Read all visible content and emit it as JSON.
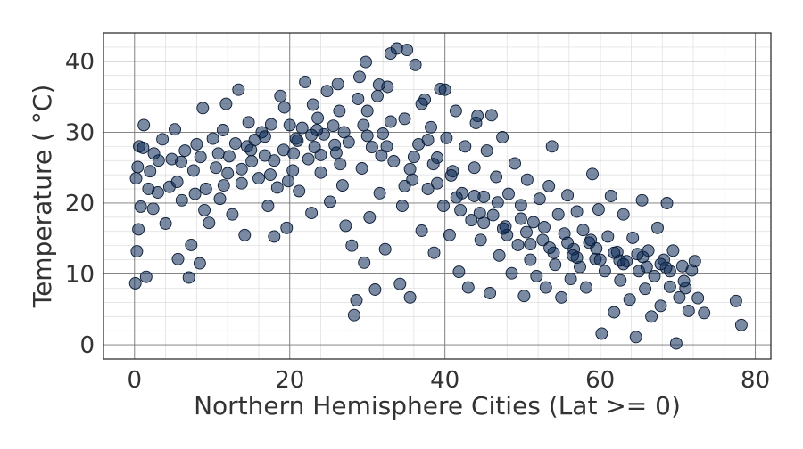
{
  "chart_data": {
    "type": "scatter",
    "title": "",
    "xlabel": "Northern Hemisphere Cities (Lat >= 0)",
    "ylabel": "Temperature ( °C)",
    "xlim": [
      -4,
      82
    ],
    "ylim": [
      -2,
      44
    ],
    "xticks": [
      0,
      20,
      40,
      60,
      80
    ],
    "xtick_labels": [
      "0",
      "20",
      "40",
      "60",
      "80"
    ],
    "yticks": [
      0,
      10,
      20,
      30,
      40
    ],
    "ytick_labels": [
      "0",
      "10",
      "20",
      "30",
      "40"
    ],
    "grid": true,
    "minor_grid": true,
    "legend": "none",
    "marker_color": "#0b2a55",
    "marker_edge_color": "#0a1a33",
    "marker_opacity": 0.55,
    "points": [
      [
        0.1,
        8.7
      ],
      [
        0.3,
        13.2
      ],
      [
        0.5,
        16.3
      ],
      [
        0.2,
        23.5
      ],
      [
        0.4,
        25.1
      ],
      [
        0.6,
        28.0
      ],
      [
        1.2,
        31.0
      ],
      [
        1.5,
        9.6
      ],
      [
        0.8,
        19.5
      ],
      [
        1.1,
        27.8
      ],
      [
        2.0,
        24.5
      ],
      [
        2.4,
        19.2
      ],
      [
        3.1,
        26.0
      ],
      [
        3.6,
        29.0
      ],
      [
        4.0,
        17.1
      ],
      [
        4.5,
        22.3
      ],
      [
        5.2,
        30.4
      ],
      [
        5.6,
        12.1
      ],
      [
        6.1,
        20.4
      ],
      [
        6.5,
        27.4
      ],
      [
        7.0,
        9.5
      ],
      [
        7.3,
        14.1
      ],
      [
        7.6,
        24.6
      ],
      [
        8.0,
        28.3
      ],
      [
        8.4,
        11.5
      ],
      [
        8.8,
        33.4
      ],
      [
        9.2,
        22.0
      ],
      [
        9.6,
        17.2
      ],
      [
        10.1,
        29.1
      ],
      [
        10.5,
        25.0
      ],
      [
        11.0,
        20.6
      ],
      [
        11.4,
        30.3
      ],
      [
        11.8,
        34.0
      ],
      [
        12.2,
        26.6
      ],
      [
        12.6,
        18.4
      ],
      [
        13.0,
        28.4
      ],
      [
        13.4,
        36.0
      ],
      [
        13.8,
        22.8
      ],
      [
        14.2,
        15.5
      ],
      [
        14.7,
        31.4
      ],
      [
        15.1,
        25.9
      ],
      [
        15.5,
        28.9
      ],
      [
        16.0,
        23.5
      ],
      [
        16.4,
        30.0
      ],
      [
        16.8,
        26.7
      ],
      [
        17.2,
        19.6
      ],
      [
        17.6,
        31.1
      ],
      [
        18.0,
        15.3
      ],
      [
        18.4,
        22.2
      ],
      [
        18.8,
        35.1
      ],
      [
        19.2,
        27.5
      ],
      [
        19.6,
        16.5
      ],
      [
        20.0,
        31.0
      ],
      [
        20.4,
        24.6
      ],
      [
        20.8,
        29.1
      ],
      [
        21.2,
        21.7
      ],
      [
        21.6,
        30.6
      ],
      [
        22.0,
        37.1
      ],
      [
        22.4,
        26.2
      ],
      [
        22.8,
        18.6
      ],
      [
        23.2,
        27.9
      ],
      [
        23.6,
        32.0
      ],
      [
        24.0,
        24.3
      ],
      [
        24.4,
        29.7
      ],
      [
        24.8,
        35.8
      ],
      [
        25.2,
        20.2
      ],
      [
        25.6,
        30.9
      ],
      [
        26.0,
        27.1
      ],
      [
        26.4,
        33.0
      ],
      [
        26.8,
        22.5
      ],
      [
        27.2,
        16.8
      ],
      [
        27.6,
        28.6
      ],
      [
        28.0,
        14.0
      ],
      [
        28.3,
        4.2
      ],
      [
        28.6,
        6.3
      ],
      [
        29.0,
        37.8
      ],
      [
        29.3,
        24.9
      ],
      [
        29.6,
        11.6
      ],
      [
        30.0,
        33.0
      ],
      [
        30.3,
        18.0
      ],
      [
        30.6,
        27.9
      ],
      [
        31.0,
        7.8
      ],
      [
        31.3,
        35.1
      ],
      [
        31.6,
        21.4
      ],
      [
        32.0,
        29.8
      ],
      [
        32.3,
        13.5
      ],
      [
        32.6,
        36.4
      ],
      [
        33.0,
        41.1
      ],
      [
        33.4,
        25.9
      ],
      [
        33.8,
        41.8
      ],
      [
        34.2,
        8.6
      ],
      [
        34.5,
        19.6
      ],
      [
        34.8,
        31.9
      ],
      [
        35.1,
        41.6
      ],
      [
        35.5,
        6.7
      ],
      [
        35.8,
        23.3
      ],
      [
        36.2,
        39.5
      ],
      [
        36.6,
        28.3
      ],
      [
        37.0,
        16.1
      ],
      [
        37.4,
        34.6
      ],
      [
        37.8,
        22.0
      ],
      [
        38.2,
        30.7
      ],
      [
        38.6,
        13.0
      ],
      [
        39.0,
        26.4
      ],
      [
        39.4,
        36.1
      ],
      [
        39.8,
        19.6
      ],
      [
        40.2,
        29.2
      ],
      [
        40.6,
        15.5
      ],
      [
        41.0,
        24.5
      ],
      [
        41.4,
        33.0
      ],
      [
        41.8,
        10.3
      ],
      [
        42.2,
        21.4
      ],
      [
        42.6,
        28.0
      ],
      [
        43.0,
        8.1
      ],
      [
        43.4,
        17.6
      ],
      [
        43.8,
        25.0
      ],
      [
        44.2,
        32.3
      ],
      [
        44.6,
        14.8
      ],
      [
        45.0,
        20.9
      ],
      [
        45.4,
        27.4
      ],
      [
        45.8,
        7.3
      ],
      [
        46.2,
        18.3
      ],
      [
        46.6,
        23.7
      ],
      [
        47.0,
        12.6
      ],
      [
        47.4,
        29.3
      ],
      [
        47.8,
        16.7
      ],
      [
        48.2,
        21.3
      ],
      [
        48.6,
        10.1
      ],
      [
        49.0,
        25.6
      ],
      [
        49.4,
        14.1
      ],
      [
        49.8,
        19.7
      ],
      [
        50.2,
        6.9
      ],
      [
        50.6,
        23.3
      ],
      [
        51.0,
        12.0
      ],
      [
        51.4,
        17.3
      ],
      [
        51.8,
        9.7
      ],
      [
        52.2,
        20.6
      ],
      [
        52.6,
        14.8
      ],
      [
        53.0,
        8.1
      ],
      [
        53.4,
        22.4
      ],
      [
        53.8,
        28.0
      ],
      [
        54.2,
        11.3
      ],
      [
        54.6,
        18.4
      ],
      [
        55.0,
        6.7
      ],
      [
        55.4,
        15.7
      ],
      [
        55.8,
        21.1
      ],
      [
        56.2,
        9.3
      ],
      [
        56.6,
        13.5
      ],
      [
        57.0,
        18.8
      ],
      [
        57.4,
        11.0
      ],
      [
        57.8,
        16.2
      ],
      [
        58.2,
        8.1
      ],
      [
        58.6,
        14.4
      ],
      [
        59.0,
        24.1
      ],
      [
        59.4,
        12.1
      ],
      [
        59.8,
        19.1
      ],
      [
        60.2,
        1.6
      ],
      [
        60.6,
        10.4
      ],
      [
        61.0,
        15.3
      ],
      [
        61.4,
        21.0
      ],
      [
        61.8,
        4.6
      ],
      [
        62.2,
        13.1
      ],
      [
        62.6,
        9.1
      ],
      [
        63.0,
        18.4
      ],
      [
        63.4,
        11.8
      ],
      [
        63.8,
        6.4
      ],
      [
        64.2,
        15.1
      ],
      [
        64.6,
        1.1
      ],
      [
        65.0,
        10.4
      ],
      [
        65.4,
        20.4
      ],
      [
        65.8,
        7.9
      ],
      [
        66.2,
        13.3
      ],
      [
        66.6,
        4.0
      ],
      [
        67.0,
        9.7
      ],
      [
        67.4,
        16.5
      ],
      [
        67.8,
        5.5
      ],
      [
        68.2,
        12.0
      ],
      [
        68.6,
        20.0
      ],
      [
        69.0,
        8.2
      ],
      [
        69.4,
        13.3
      ],
      [
        69.8,
        0.2
      ],
      [
        70.2,
        6.7
      ],
      [
        70.6,
        11.1
      ],
      [
        71.0,
        8.0
      ],
      [
        71.4,
        4.8
      ],
      [
        71.8,
        10.5
      ],
      [
        72.2,
        11.8
      ],
      [
        72.6,
        6.6
      ],
      [
        73.4,
        4.5
      ],
      [
        77.5,
        6.2
      ],
      [
        78.2,
        2.8
      ],
      [
        3.0,
        21.5
      ],
      [
        6.0,
        25.8
      ],
      [
        9.0,
        19.0
      ],
      [
        12.0,
        24.2
      ],
      [
        15.0,
        27.5
      ],
      [
        18.0,
        26.0
      ],
      [
        21.0,
        28.8
      ],
      [
        24.0,
        26.8
      ],
      [
        27.0,
        30.0
      ],
      [
        30.0,
        29.5
      ],
      [
        33.0,
        31.5
      ],
      [
        36.0,
        26.5
      ],
      [
        39.0,
        22.8
      ],
      [
        42.0,
        19.0
      ],
      [
        45.0,
        17.2
      ],
      [
        48.0,
        15.5
      ],
      [
        51.0,
        14.2
      ],
      [
        54.0,
        13.0
      ],
      [
        57.0,
        12.3
      ],
      [
        60.0,
        12.0
      ],
      [
        63.0,
        11.4
      ],
      [
        66.0,
        11.0
      ],
      [
        69.0,
        10.4
      ],
      [
        2.5,
        27.0
      ],
      [
        5.5,
        23.0
      ],
      [
        8.5,
        26.5
      ],
      [
        11.5,
        22.5
      ],
      [
        14.5,
        28.0
      ],
      [
        17.5,
        24.0
      ],
      [
        20.5,
        27.0
      ],
      [
        23.5,
        30.3
      ],
      [
        26.5,
        25.5
      ],
      [
        29.5,
        31.0
      ],
      [
        32.5,
        28.0
      ],
      [
        35.5,
        24.8
      ],
      [
        38.5,
        25.5
      ],
      [
        41.5,
        20.8
      ],
      [
        44.5,
        18.6
      ],
      [
        47.5,
        16.4
      ],
      [
        50.5,
        15.9
      ],
      [
        53.5,
        13.7
      ],
      [
        56.5,
        12.6
      ],
      [
        59.5,
        13.6
      ],
      [
        62.5,
        11.9
      ],
      [
        65.5,
        12.4
      ],
      [
        68.5,
        10.9
      ],
      [
        1.8,
        22.0
      ],
      [
        4.8,
        26.2
      ],
      [
        7.8,
        21.3
      ],
      [
        10.8,
        27.0
      ],
      [
        13.8,
        24.8
      ],
      [
        16.8,
        29.4
      ],
      [
        19.8,
        23.1
      ],
      [
        22.8,
        29.6
      ],
      [
        25.8,
        28.2
      ],
      [
        28.8,
        34.7
      ],
      [
        31.8,
        26.7
      ],
      [
        34.8,
        22.4
      ],
      [
        37.8,
        28.9
      ],
      [
        40.8,
        23.9
      ],
      [
        43.8,
        21.0
      ],
      [
        46.8,
        20.1
      ],
      [
        49.8,
        17.8
      ],
      [
        52.8,
        16.6
      ],
      [
        55.8,
        14.4
      ],
      [
        58.8,
        14.8
      ],
      [
        61.8,
        13.0
      ],
      [
        64.8,
        12.8
      ],
      [
        67.8,
        11.4
      ],
      [
        70.8,
        9.0
      ],
      [
        46.0,
        32.4
      ],
      [
        44.0,
        31.3
      ],
      [
        40.0,
        36.0
      ],
      [
        37.0,
        34.0
      ],
      [
        31.5,
        36.7
      ],
      [
        29.8,
        39.9
      ],
      [
        26.2,
        36.8
      ],
      [
        23.0,
        33.9
      ],
      [
        19.3,
        33.5
      ]
    ]
  }
}
